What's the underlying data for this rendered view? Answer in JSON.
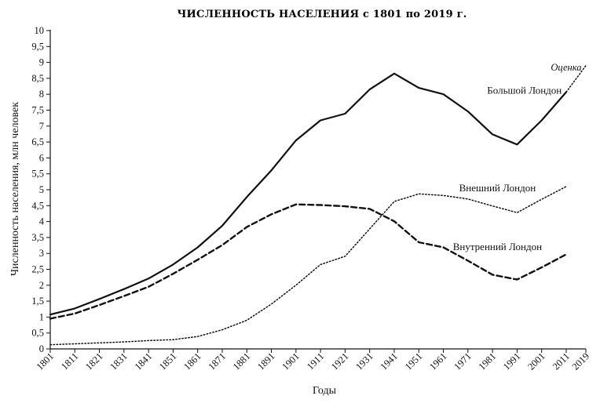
{
  "chart_data": {
    "type": "line",
    "title": "ЧИСЛЕННОСТЬ НАСЕЛЕНИЯ с 1801 по 2019 г.",
    "xlabel": "Годы",
    "ylabel": "Численность населения, млн человек",
    "categories": [
      "1801",
      "1811",
      "1821",
      "1831",
      "1841",
      "1851",
      "1861",
      "1871",
      "1881",
      "1891",
      "1901",
      "1911",
      "1921",
      "1931",
      "1941",
      "1951",
      "1961",
      "1971",
      "1981",
      "1991",
      "2001",
      "2011",
      "2019"
    ],
    "x": [
      1801,
      1811,
      1821,
      1831,
      1841,
      1851,
      1861,
      1871,
      1881,
      1891,
      1901,
      1911,
      1921,
      1931,
      1941,
      1951,
      1961,
      1971,
      1981,
      1991,
      2001,
      2011,
      2019
    ],
    "ylim": [
      0,
      10
    ],
    "yticks": [
      "0",
      "0,5",
      "1",
      "1,5",
      "2",
      "2,5",
      "3",
      "3,5",
      "4",
      "4,5",
      "5",
      "5,5",
      "6",
      "6,5",
      "7",
      "7,5",
      "8",
      "8,5",
      "9",
      "9,5",
      "10"
    ],
    "grid": false,
    "series": [
      {
        "name": "Большой Лондон",
        "style": "solid",
        "x": [
          1801,
          1811,
          1821,
          1831,
          1841,
          1851,
          1861,
          1871,
          1881,
          1891,
          1901,
          1911,
          1921,
          1931,
          1941,
          1951,
          1961,
          1971,
          1981,
          1991,
          2001,
          2011
        ],
        "values": [
          1.08,
          1.27,
          1.57,
          1.88,
          2.21,
          2.65,
          3.19,
          3.87,
          4.77,
          5.61,
          6.55,
          7.18,
          7.39,
          8.15,
          8.65,
          8.2,
          8.0,
          7.46,
          6.74,
          6.42,
          7.18,
          8.07
        ]
      },
      {
        "name": "Внешний Лондон",
        "style": "dotted",
        "x": [
          1801,
          1811,
          1821,
          1831,
          1841,
          1851,
          1861,
          1871,
          1881,
          1891,
          1901,
          1911,
          1921,
          1931,
          1941,
          1951,
          1961,
          1971,
          1981,
          1991,
          2001,
          2011
        ],
        "values": [
          0.13,
          0.16,
          0.19,
          0.22,
          0.26,
          0.29,
          0.39,
          0.6,
          0.9,
          1.41,
          2.0,
          2.65,
          2.91,
          3.77,
          4.63,
          4.87,
          4.82,
          4.71,
          4.49,
          4.28,
          4.7,
          5.1
        ]
      },
      {
        "name": "Внутренний Лондон",
        "style": "dashed",
        "x": [
          1801,
          1811,
          1821,
          1831,
          1841,
          1851,
          1861,
          1871,
          1881,
          1891,
          1901,
          1911,
          1921,
          1931,
          1941,
          1951,
          1961,
          1971,
          1981,
          1991,
          2001,
          2011
        ],
        "values": [
          0.95,
          1.11,
          1.38,
          1.66,
          1.95,
          2.36,
          2.8,
          3.26,
          3.83,
          4.23,
          4.54,
          4.52,
          4.48,
          4.4,
          4.01,
          3.35,
          3.19,
          2.77,
          2.33,
          2.18,
          2.56,
          2.97
        ]
      },
      {
        "name": "",
        "style": "dotted",
        "x": [
          2011,
          2019
        ],
        "values": [
          8.07,
          8.9
        ]
      }
    ],
    "annotations": [
      {
        "text": "Оценка",
        "x": 2011,
        "y": 8.75
      }
    ],
    "label_positions": [
      {
        "series": "Большой Лондон",
        "x": 1994,
        "y": 8.02
      },
      {
        "series": "Внешний Лондон",
        "x": 1983,
        "y": 4.95
      },
      {
        "series": "Внутренний Лондон",
        "x": 1983,
        "y": 3.1
      }
    ]
  }
}
